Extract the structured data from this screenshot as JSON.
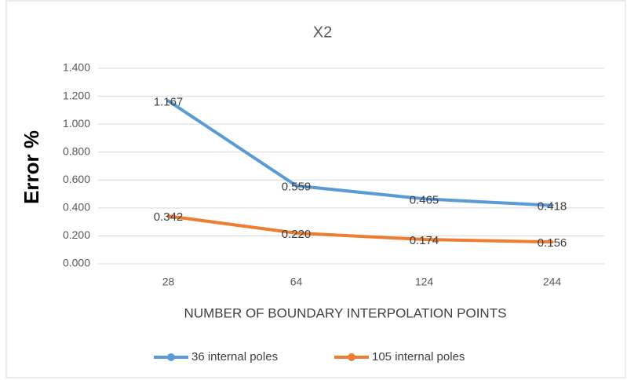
{
  "chart_data": {
    "type": "line",
    "title": "X2",
    "x_label": "NUMBER OF BOUNDARY INTERPOLATION POINTS",
    "y_label": "Error %",
    "categories": [
      "28",
      "64",
      "124",
      "244"
    ],
    "series": [
      {
        "name": "36 internal poles",
        "color": "#5b9bd5",
        "values": [
          1.167,
          0.559,
          0.465,
          0.418
        ],
        "value_labels": [
          "1.167",
          "0.559",
          "0.465",
          "0.418"
        ]
      },
      {
        "name": "105 internal poles",
        "color": "#ed7d31",
        "values": [
          0.342,
          0.22,
          0.174,
          0.156
        ],
        "value_labels": [
          "0.342",
          "0.220",
          "0.174",
          "0.156"
        ]
      }
    ],
    "ylim": [
      0,
      1.4
    ],
    "yticks": [
      {
        "value": 0,
        "label": "0.000"
      },
      {
        "value": 0.2,
        "label": "0.200"
      },
      {
        "value": 0.4,
        "label": "0.400"
      },
      {
        "value": 0.6,
        "label": "0.600"
      },
      {
        "value": 0.8,
        "label": "0.800"
      },
      {
        "value": 1.0,
        "label": "1.000"
      },
      {
        "value": 1.2,
        "label": "1.200"
      },
      {
        "value": 1.4,
        "label": "1.400"
      }
    ],
    "grid": true,
    "legend": "bottom"
  }
}
